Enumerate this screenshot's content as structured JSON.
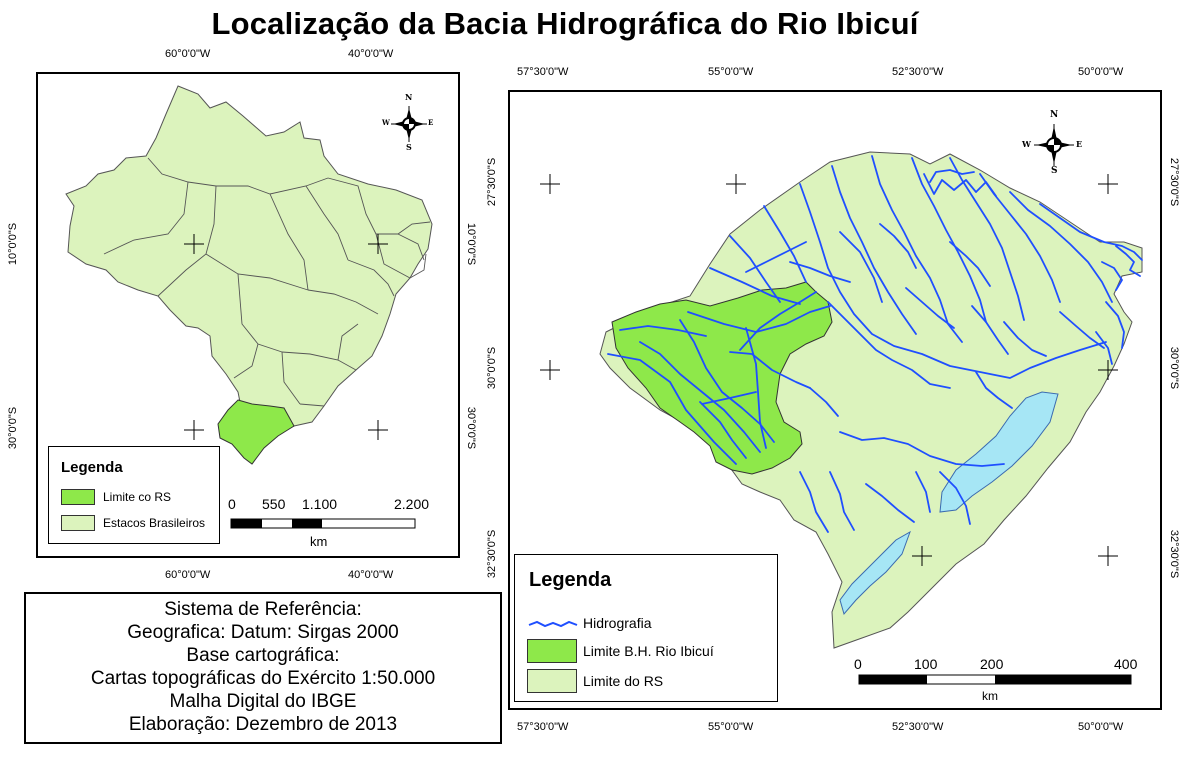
{
  "title": "Localização da Bacia Hidrográfica do Rio Ibicuí",
  "left_map": {
    "top_labels": [
      "60°0'0\"W",
      "40°0'0\"W"
    ],
    "bottom_labels": [
      "60°0'0\"W",
      "40°0'0\"W"
    ],
    "left_labels": [
      "10°0'0\"S",
      "30°0'0\"S"
    ],
    "right_labels": [
      "10°0'0\"S",
      "30°0'0\"S"
    ],
    "north_arrow": {
      "n": "N",
      "s": "S",
      "e": "E",
      "w": "W"
    },
    "legend": {
      "title": "Legenda",
      "items": [
        {
          "label": "Limite co RS",
          "color": "#8ee84a"
        },
        {
          "label": "Estacos Brasileiros",
          "color": "#dcf3bd"
        }
      ]
    },
    "scale": {
      "ticks": [
        "0",
        "550",
        "1.100",
        "2.200"
      ],
      "unit": "km"
    }
  },
  "right_map": {
    "top_labels": [
      "57°30'0\"W",
      "55°0'0\"W",
      "52°30'0\"W",
      "50°0'0\"W"
    ],
    "bottom_labels": [
      "57°30'0\"W",
      "55°0'0\"W",
      "52°30'0\"W",
      "50°0'0\"W"
    ],
    "left_labels": [
      "27°30'0\"S",
      "30°0'0\"S",
      "32°30'0\"S"
    ],
    "right_labels": [
      "27°30'0\"S",
      "30°0'0\"S",
      "32°30'0\"S"
    ],
    "north_arrow": {
      "n": "N",
      "s": "S",
      "e": "E",
      "w": "W"
    },
    "legend": {
      "title": "Legenda",
      "items": [
        {
          "label": "Hidrografia",
          "kind": "line",
          "color": "#1f4fff"
        },
        {
          "label": "Limite B.H. Rio Ibicuí",
          "kind": "fill",
          "color": "#8ee84a"
        },
        {
          "label": "Limite do RS",
          "kind": "fill",
          "color": "#dcf3bd"
        }
      ]
    },
    "scale": {
      "ticks": [
        "0",
        "100",
        "200",
        "400"
      ],
      "unit": "km"
    }
  },
  "reference_box": {
    "lines": [
      "Sistema de Referência:",
      "Geografica: Datum: Sirgas 2000",
      "Base cartográfica:",
      "Cartas topográficas do Exército 1:50.000",
      "Malha Digital do IBGE",
      "Elaboração: Dezembro de 2013"
    ]
  },
  "colors": {
    "state_fill": "#dcf3bd",
    "basin_fill": "#8ee84a",
    "river": "#1f4fff",
    "lagoon": "#a6e6f5",
    "border": "#555555"
  }
}
